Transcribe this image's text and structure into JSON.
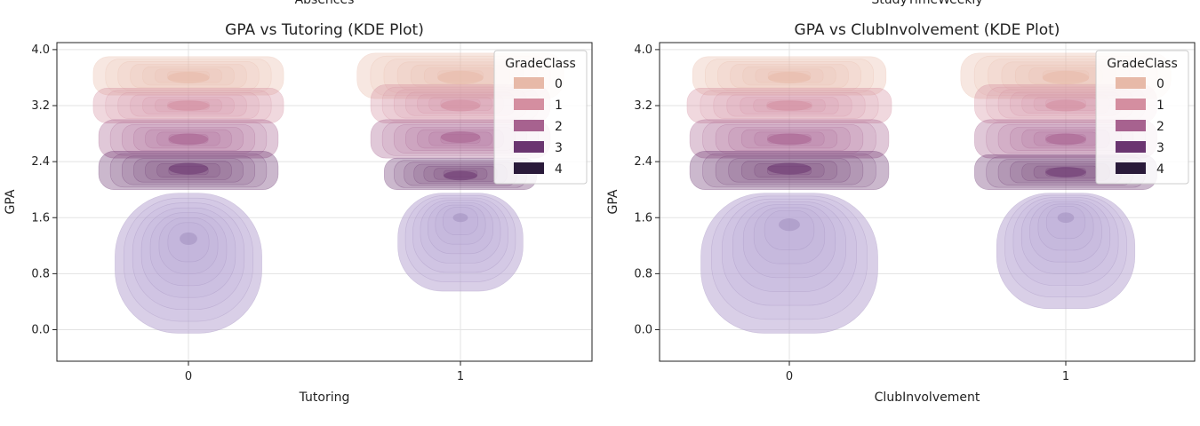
{
  "figure": {
    "cut_labels": [
      "Absences",
      "StudyTimeWeekly"
    ]
  },
  "chart_data": [
    {
      "type": "kde",
      "title": "GPA vs Tutoring (KDE Plot)",
      "xlabel": "Tutoring",
      "ylabel": "GPA",
      "x_categories": [
        "0",
        "1"
      ],
      "x_tick_labels": [
        "0",
        "1"
      ],
      "ylim": [
        -0.45,
        4.1
      ],
      "yticks": [
        0.0,
        0.8,
        1.6,
        2.4,
        3.2,
        4.0
      ],
      "ytick_labels": [
        "0.0",
        "0.8",
        "1.6",
        "2.4",
        "3.2",
        "4.0"
      ],
      "grid": true,
      "legend": {
        "title": "GradeClass",
        "placement": "top-right",
        "entries": [
          "0",
          "1",
          "2",
          "3",
          "4"
        ]
      },
      "series": [
        {
          "name": "0",
          "color": "#e7b9a8",
          "clusters": [
            {
              "x": 0,
              "center": 3.6,
              "y_range": [
                3.35,
                3.9
              ],
              "x_halfwidth": 0.35
            },
            {
              "x": 1,
              "center": 3.6,
              "y_range": [
                3.3,
                3.95
              ],
              "x_halfwidth": 0.38
            }
          ]
        },
        {
          "name": "1",
          "color": "#d48ea0",
          "clusters": [
            {
              "x": 0,
              "center": 3.2,
              "y_range": [
                2.95,
                3.45
              ],
              "x_halfwidth": 0.35
            },
            {
              "x": 1,
              "center": 3.2,
              "y_range": [
                2.95,
                3.5
              ],
              "x_halfwidth": 0.33
            }
          ]
        },
        {
          "name": "2",
          "color": "#a7628f",
          "clusters": [
            {
              "x": 0,
              "center": 2.72,
              "y_range": [
                2.45,
                3.0
              ],
              "x_halfwidth": 0.33
            },
            {
              "x": 1,
              "center": 2.75,
              "y_range": [
                2.45,
                3.0
              ],
              "x_halfwidth": 0.33
            }
          ]
        },
        {
          "name": "3",
          "color": "#6a3570",
          "clusters": [
            {
              "x": 0,
              "center": 2.3,
              "y_range": [
                2.0,
                2.55
              ],
              "x_halfwidth": 0.33
            },
            {
              "x": 1,
              "center": 2.2,
              "y_range": [
                2.0,
                2.45
              ],
              "x_halfwidth": 0.28
            }
          ]
        },
        {
          "name": "4",
          "color": "#2a1a3a",
          "clusters": [
            {
              "x": 0,
              "center": 1.3,
              "y_range": [
                -0.05,
                1.95
              ],
              "x_halfwidth": 0.27
            },
            {
              "x": 1,
              "center": 1.6,
              "y_range": [
                0.55,
                1.95
              ],
              "x_halfwidth": 0.23
            }
          ]
        }
      ]
    },
    {
      "type": "kde",
      "title": "GPA vs ClubInvolvement (KDE Plot)",
      "xlabel": "ClubInvolvement",
      "ylabel": "GPA",
      "x_categories": [
        "0",
        "1"
      ],
      "x_tick_labels": [
        "0",
        "1"
      ],
      "ylim": [
        -0.45,
        4.1
      ],
      "yticks": [
        0.0,
        0.8,
        1.6,
        2.4,
        3.2,
        4.0
      ],
      "ytick_labels": [
        "0.0",
        "0.8",
        "1.6",
        "2.4",
        "3.2",
        "4.0"
      ],
      "grid": true,
      "legend": {
        "title": "GradeClass",
        "placement": "top-right",
        "entries": [
          "0",
          "1",
          "2",
          "3",
          "4"
        ]
      },
      "series": [
        {
          "name": "0",
          "color": "#e7b9a8",
          "clusters": [
            {
              "x": 0,
              "center": 3.6,
              "y_range": [
                3.35,
                3.9
              ],
              "x_halfwidth": 0.35
            },
            {
              "x": 1,
              "center": 3.6,
              "y_range": [
                3.3,
                3.95
              ],
              "x_halfwidth": 0.38
            }
          ]
        },
        {
          "name": "1",
          "color": "#d48ea0",
          "clusters": [
            {
              "x": 0,
              "center": 3.2,
              "y_range": [
                2.95,
                3.45
              ],
              "x_halfwidth": 0.37
            },
            {
              "x": 1,
              "center": 3.2,
              "y_range": [
                2.95,
                3.5
              ],
              "x_halfwidth": 0.33
            }
          ]
        },
        {
          "name": "2",
          "color": "#a7628f",
          "clusters": [
            {
              "x": 0,
              "center": 2.72,
              "y_range": [
                2.45,
                3.0
              ],
              "x_halfwidth": 0.36
            },
            {
              "x": 1,
              "center": 2.72,
              "y_range": [
                2.45,
                3.0
              ],
              "x_halfwidth": 0.33
            }
          ]
        },
        {
          "name": "3",
          "color": "#6a3570",
          "clusters": [
            {
              "x": 0,
              "center": 2.3,
              "y_range": [
                2.0,
                2.55
              ],
              "x_halfwidth": 0.36
            },
            {
              "x": 1,
              "center": 2.25,
              "y_range": [
                2.0,
                2.5
              ],
              "x_halfwidth": 0.33
            }
          ]
        },
        {
          "name": "4",
          "color": "#2a1a3a",
          "clusters": [
            {
              "x": 0,
              "center": 1.5,
              "y_range": [
                -0.05,
                1.95
              ],
              "x_halfwidth": 0.32
            },
            {
              "x": 1,
              "center": 1.6,
              "y_range": [
                0.3,
                1.95
              ],
              "x_halfwidth": 0.25
            }
          ]
        }
      ]
    }
  ]
}
